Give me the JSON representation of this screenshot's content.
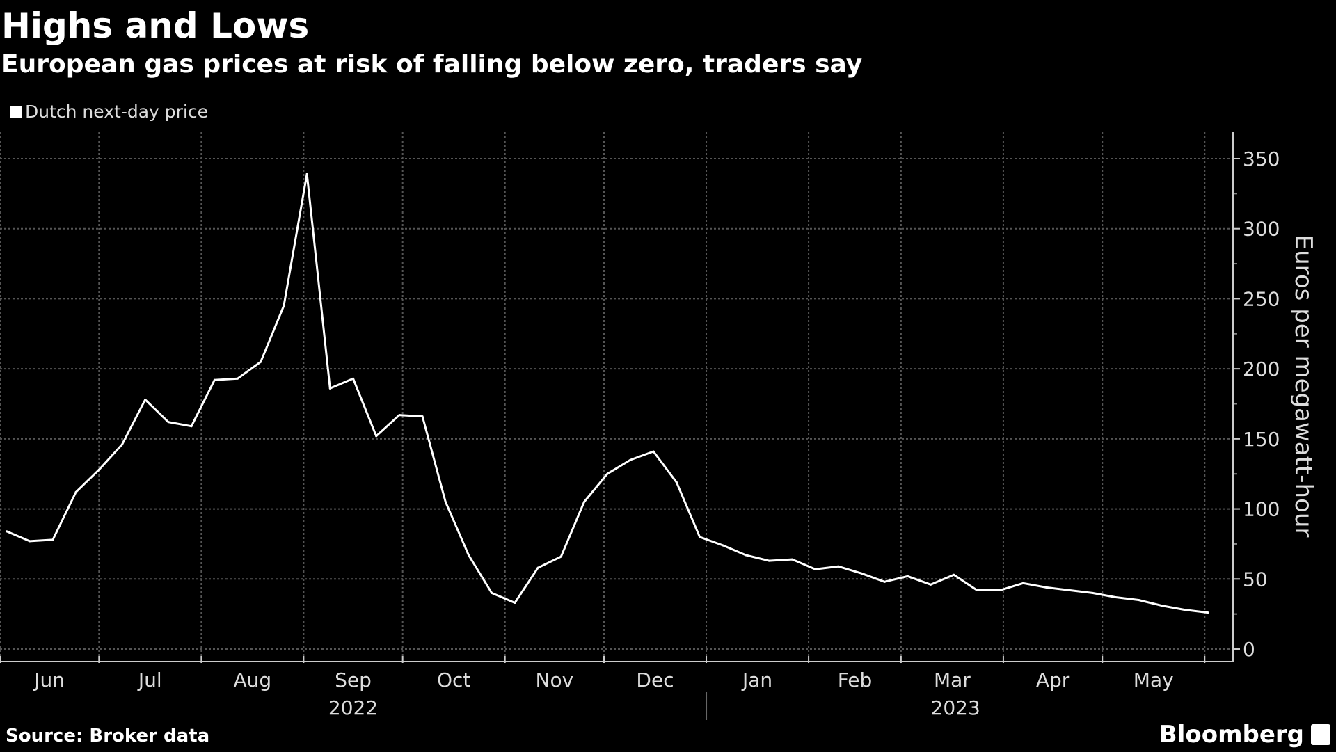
{
  "header": {
    "title": "Highs and Lows",
    "subtitle": "European gas prices at risk of falling below zero, traders say"
  },
  "legend": {
    "label": "Dutch next-day price",
    "color": "#ffffff"
  },
  "footer": {
    "source": "Source: Broker data",
    "logo": "Bloomberg"
  },
  "chart_data": {
    "type": "line",
    "title": "Highs and Lows",
    "subtitle": "European gas prices at risk of falling below zero, traders say",
    "ylabel": "Euros per megawatt-hour",
    "y_axis_side": "right",
    "ylim": [
      0,
      360
    ],
    "yticks": [
      0,
      50,
      100,
      150,
      200,
      250,
      300,
      350
    ],
    "xlim": [
      "2022-06-01",
      "2023-06-02"
    ],
    "grid": true,
    "legend_position": "top-left",
    "month_labels": [
      {
        "label": "Jun",
        "date": "2022-06-01"
      },
      {
        "label": "Jul",
        "date": "2022-07-01"
      },
      {
        "label": "Aug",
        "date": "2022-08-01"
      },
      {
        "label": "Sep",
        "date": "2022-09-01"
      },
      {
        "label": "Oct",
        "date": "2022-10-01"
      },
      {
        "label": "Nov",
        "date": "2022-11-01"
      },
      {
        "label": "Dec",
        "date": "2022-12-01"
      },
      {
        "label": "Jan",
        "date": "2023-01-01"
      },
      {
        "label": "Feb",
        "date": "2023-02-01"
      },
      {
        "label": "Mar",
        "date": "2023-03-01"
      },
      {
        "label": "Apr",
        "date": "2023-04-01"
      },
      {
        "label": "May",
        "date": "2023-05-01"
      }
    ],
    "month_end": "2023-06-01",
    "year_labels": [
      "2022",
      "2023"
    ],
    "series": [
      {
        "name": "Dutch next-day price",
        "color": "#ffffff",
        "x": [
          "2022-06-03",
          "2022-06-10",
          "2022-06-17",
          "2022-06-24",
          "2022-07-01",
          "2022-07-08",
          "2022-07-15",
          "2022-07-22",
          "2022-07-29",
          "2022-08-05",
          "2022-08-12",
          "2022-08-19",
          "2022-08-26",
          "2022-09-02",
          "2022-09-09",
          "2022-09-16",
          "2022-09-23",
          "2022-09-30",
          "2022-10-07",
          "2022-10-14",
          "2022-10-21",
          "2022-10-28",
          "2022-11-04",
          "2022-11-11",
          "2022-11-18",
          "2022-11-25",
          "2022-12-02",
          "2022-12-09",
          "2022-12-16",
          "2022-12-23",
          "2022-12-30",
          "2023-01-06",
          "2023-01-13",
          "2023-01-20",
          "2023-01-27",
          "2023-02-03",
          "2023-02-10",
          "2023-02-17",
          "2023-02-24",
          "2023-03-03",
          "2023-03-10",
          "2023-03-17",
          "2023-03-24",
          "2023-03-31",
          "2023-04-07",
          "2023-04-14",
          "2023-04-21",
          "2023-04-28",
          "2023-05-05",
          "2023-05-12",
          "2023-05-19",
          "2023-05-26",
          "2023-06-02"
        ],
        "values": [
          84,
          77,
          78,
          112,
          128,
          146,
          178,
          162,
          159,
          192,
          193,
          205,
          245,
          339,
          186,
          193,
          152,
          167,
          166,
          105,
          67,
          40,
          33,
          58,
          66,
          105,
          125,
          135,
          141,
          119,
          80,
          74,
          67,
          63,
          64,
          57,
          59,
          54,
          48,
          52,
          46,
          53,
          42,
          42,
          47,
          44,
          42,
          40,
          37,
          35,
          31,
          28,
          26
        ]
      }
    ]
  }
}
